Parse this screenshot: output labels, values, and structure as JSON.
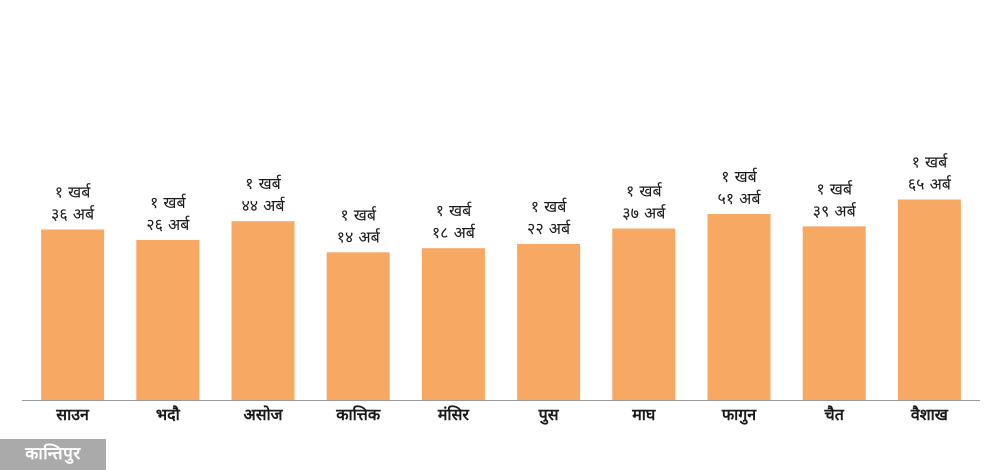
{
  "chart_data": {
    "type": "bar",
    "categories": [
      "साउन",
      "भदौ",
      "असोज",
      "कात्तिक",
      "मंसिर",
      "पुस",
      "माघ",
      "फागुन",
      "चैत",
      "वैशाख"
    ],
    "values": [
      136,
      126,
      144,
      114,
      118,
      122,
      137,
      151,
      139,
      165
    ],
    "value_unit": "अर्ब",
    "data_labels": [
      [
        "१ खर्ब",
        "३६ अर्ब"
      ],
      [
        "१ खर्ब",
        "२६ अर्ब"
      ],
      [
        "१ खर्ब",
        "४४ अर्ब"
      ],
      [
        "१ खर्ब",
        "१४ अर्ब"
      ],
      [
        "१ खर्ब",
        "१८ अर्ब"
      ],
      [
        "१ खर्ब",
        "२२ अर्ब"
      ],
      [
        "१ खर्ब",
        "३७ अर्ब"
      ],
      [
        "१ खर्ब",
        "५१ अर्ब"
      ],
      [
        "१ खर्ब",
        "३९ अर्ब"
      ],
      [
        "१ खर्ब",
        "६५ अर्ब"
      ]
    ],
    "title": "",
    "xlabel": "",
    "ylabel": "",
    "grid": false,
    "legend": "none",
    "bar_color": "#F7A862",
    "axis_color": "#999999"
  },
  "logo": {
    "text": "कान्तिपुर"
  }
}
